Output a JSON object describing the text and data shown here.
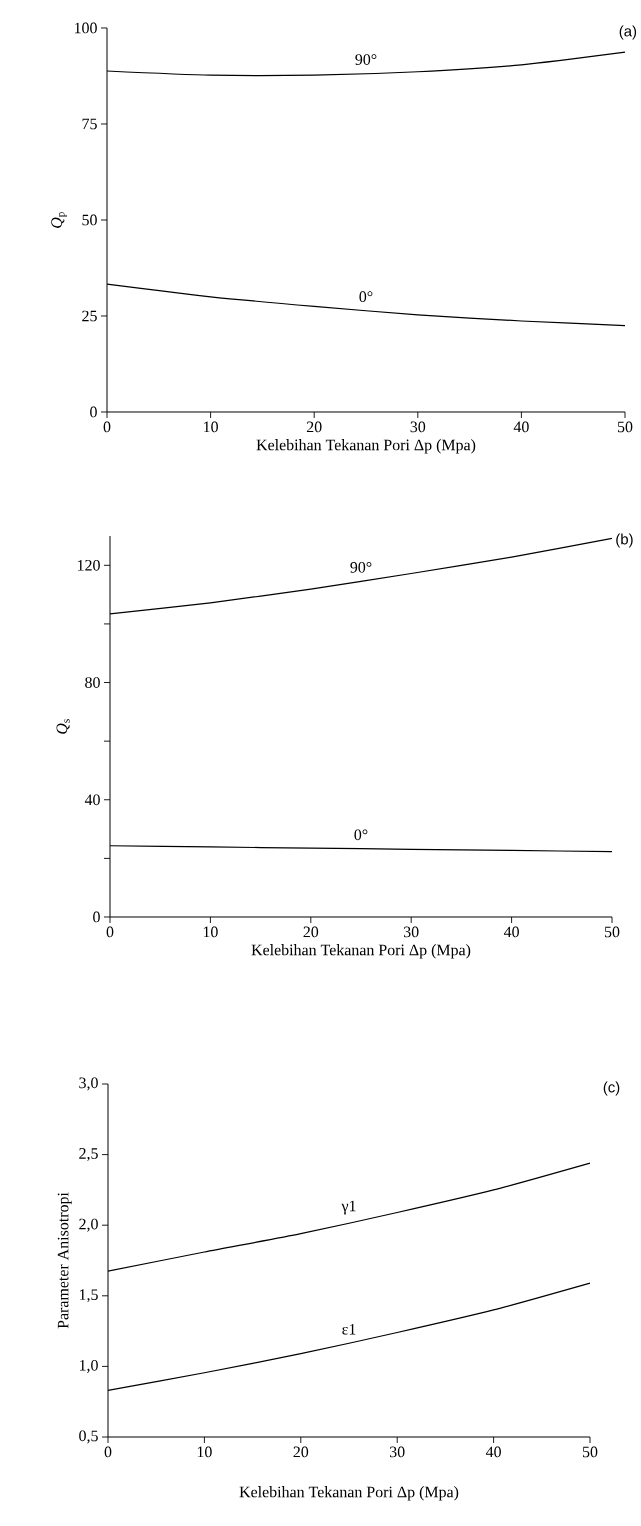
{
  "chart_data": [
    {
      "type": "line",
      "title": "(a)",
      "xlabel": "Kelebihan Tekanan Pori Δp (Mpa)",
      "ylabel": "*Q*$_{p}$",
      "x": [
        0,
        10,
        20,
        30,
        40,
        50
      ],
      "series": [
        {
          "name": "90°",
          "color": "#000000",
          "values": [
            88.8,
            87.7,
            87.7,
            88.6,
            90.4,
            93.7
          ]
        },
        {
          "name": "0°",
          "color": "#000000",
          "values": [
            33.3,
            30.0,
            27.5,
            25.3,
            23.7,
            22.5
          ]
        }
      ],
      "xlim": [
        0,
        50
      ],
      "ylim": [
        0,
        100
      ],
      "xticks": [
        0,
        10,
        20,
        30,
        40,
        50
      ],
      "yticks": [
        0,
        25,
        50,
        75,
        100
      ]
    },
    {
      "type": "line",
      "title": "(b)",
      "xlabel": "Kelebihan Tekanan Pori Δp (Mpa)",
      "ylabel": "*Q*$_{s}$",
      "x": [
        0,
        10,
        20,
        30,
        40,
        50
      ],
      "series": [
        {
          "name": "90°",
          "color": "#000000",
          "values": [
            103.4,
            107.2,
            111.9,
            117.2,
            122.8,
            129.2
          ]
        },
        {
          "name": "0°",
          "color": "#000000",
          "values": [
            24.3,
            23.9,
            23.5,
            23.1,
            22.7,
            22.3
          ]
        }
      ],
      "xlim": [
        0,
        50
      ],
      "ylim": [
        0,
        130
      ],
      "xticks": [
        0,
        10,
        20,
        30,
        40,
        50
      ],
      "yticks": [
        0,
        {
          "value": 20,
          "label": null
        },
        40,
        {
          "value": 60,
          "label": null
        },
        80,
        {
          "value": 100,
          "label": null
        },
        120
      ]
    },
    {
      "type": "line",
      "title": "(c)",
      "xlabel": "Kelebihan Tekanan Pori Δp (Mpa)",
      "ylabel": "Parameter Anisotropi",
      "x": [
        0,
        10,
        20,
        30,
        40,
        50
      ],
      "series": [
        {
          "name": "γ1",
          "color": "#000000",
          "values": [
            1.675,
            1.81,
            1.94,
            2.09,
            2.25,
            2.44
          ]
        },
        {
          "name": "ε1",
          "color": "#000000",
          "values": [
            0.83,
            0.955,
            1.09,
            1.24,
            1.4,
            1.59
          ]
        }
      ],
      "xlim": [
        0,
        50
      ],
      "ylim": [
        0.5,
        3.0
      ],
      "xticks": [
        0,
        10,
        20,
        30,
        40,
        50
      ],
      "yticks": [
        {
          "value": 0.5,
          "label": "0,5"
        },
        {
          "value": 1.0,
          "label": "1,0"
        },
        {
          "value": 1.5,
          "label": "1,5"
        },
        {
          "value": 2.0,
          "label": "2,0"
        },
        {
          "value": 2.5,
          "label": "2,5"
        },
        {
          "value": 3.0,
          "label": "3,0"
        }
      ]
    }
  ]
}
